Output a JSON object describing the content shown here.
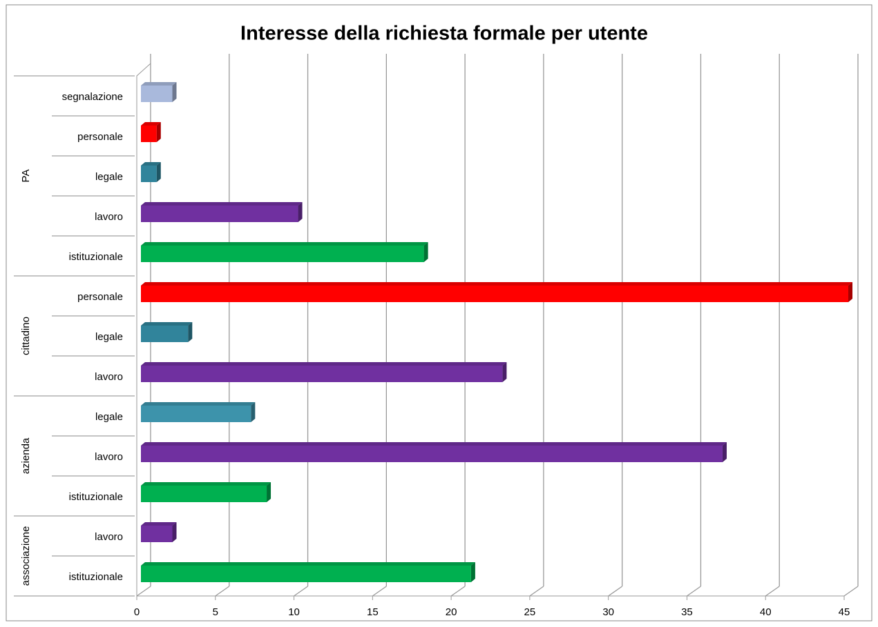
{
  "chart_data": {
    "type": "bar",
    "orientation": "horizontal",
    "title": "Interesse della richiesta formale per utente",
    "groups": [
      {
        "name": "PA",
        "categories": [
          "segnalazione",
          "personale",
          "legale",
          "lavoro",
          "istituzionale"
        ],
        "values": [
          2,
          1,
          1,
          10,
          18
        ],
        "colors": [
          "#a9b9dc",
          "#ff0000",
          "#31849b",
          "#7030a0",
          "#00b050"
        ]
      },
      {
        "name": "cittadino",
        "categories": [
          "personale",
          "legale",
          "lavoro"
        ],
        "values": [
          45,
          3,
          23
        ],
        "colors": [
          "#ff0000",
          "#31849b",
          "#7030a0"
        ]
      },
      {
        "name": "azienda",
        "categories": [
          "legale",
          "lavoro",
          "istituzionale"
        ],
        "values": [
          7,
          37,
          8
        ],
        "colors": [
          "#3d93ab",
          "#7030a0",
          "#00b050"
        ]
      },
      {
        "name": "associazione",
        "categories": [
          "lavoro",
          "istituzionale"
        ],
        "values": [
          2,
          21
        ],
        "colors": [
          "#7030a0",
          "#00b050"
        ]
      }
    ],
    "xlim": [
      0,
      45
    ],
    "xticks": [
      0,
      5,
      10,
      15,
      20,
      25,
      30,
      35,
      40,
      45
    ],
    "grid": true
  }
}
